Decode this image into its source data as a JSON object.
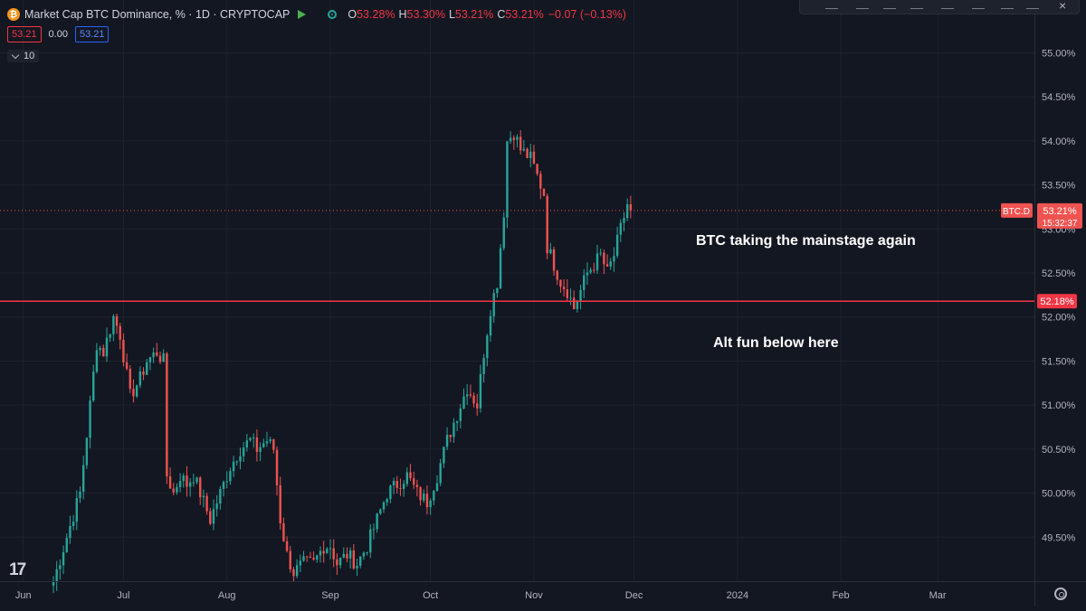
{
  "legend": {
    "coin_symbol": "₿",
    "title": "Market Cap BTC Dominance, % · 1D · CRYPTOCAP",
    "o_label": "O",
    "o_value": "53.28%",
    "h_label": "H",
    "h_value": "53.30%",
    "l_label": "L",
    "l_value": "53.21%",
    "c_label": "C",
    "c_value": "53.21%",
    "change": "−0.07 (−0.13%)"
  },
  "quote": {
    "bid": "53.21",
    "spread": "0.00",
    "ask": "53.21"
  },
  "indicator": {
    "value": "10"
  },
  "toolbar": {
    "close_symbol": "×"
  },
  "branding": {
    "logo_text": "17"
  },
  "annotations": {
    "upper": "BTC taking the mainstage again",
    "lower": "Alt fun below here"
  },
  "colors": {
    "background": "#131722",
    "up": "#26a69a",
    "down": "#ef5350",
    "level_line": "#f23645",
    "grid": "#1e222d",
    "axis_text": "#b2b5be"
  },
  "chart_data": {
    "type": "candlestick",
    "title": "Market Cap BTC Dominance, % · 1D · CRYPTOCAP",
    "symbol": "BTC.D",
    "timeframe": "1D",
    "y_unit": "%",
    "ylim": [
      49.0,
      55.6
    ],
    "y_ticks": [
      49.5,
      50.0,
      50.5,
      51.0,
      51.5,
      52.0,
      52.5,
      53.0,
      53.5,
      54.0,
      54.5,
      55.0
    ],
    "y_tick_labels": [
      "49.50%",
      "50.00%",
      "50.50%",
      "51.00%",
      "51.50%",
      "52.00%",
      "52.50%",
      "53.00%",
      "53.50%",
      "54.00%",
      "54.50%",
      "55.00%"
    ],
    "x_range": [
      "2023-05-25",
      "2024-03-30"
    ],
    "x_ticks": [
      {
        "date": "2023-06-01",
        "label": "Jun"
      },
      {
        "date": "2023-07-01",
        "label": "Jul"
      },
      {
        "date": "2023-08-01",
        "label": "Aug"
      },
      {
        "date": "2023-09-01",
        "label": "Sep"
      },
      {
        "date": "2023-10-01",
        "label": "Oct"
      },
      {
        "date": "2023-11-01",
        "label": "Nov"
      },
      {
        "date": "2023-12-01",
        "label": "Dec"
      },
      {
        "date": "2024-01-01",
        "label": "2024"
      },
      {
        "date": "2024-02-01",
        "label": "Feb"
      },
      {
        "date": "2024-03-01",
        "label": "Mar"
      }
    ],
    "last_price": {
      "value": 53.21,
      "label": "53.21%",
      "countdown": "15:32:37",
      "symbol_tag": "BTC.D"
    },
    "horizontal_line": {
      "value": 52.18,
      "label": "52.18%"
    },
    "close_anchors": [
      [
        "2023-06-10",
        49.0
      ],
      [
        "2023-06-14",
        49.5
      ],
      [
        "2023-06-18",
        50.0
      ],
      [
        "2023-06-21",
        51.0
      ],
      [
        "2023-06-23",
        51.7
      ],
      [
        "2023-06-25",
        51.6
      ],
      [
        "2023-06-28",
        52.0
      ],
      [
        "2023-06-30",
        51.8
      ],
      [
        "2023-07-03",
        51.1
      ],
      [
        "2023-07-06",
        51.3
      ],
      [
        "2023-07-08",
        51.5
      ],
      [
        "2023-07-11",
        51.6
      ],
      [
        "2023-07-13",
        51.5
      ],
      [
        "2023-07-14",
        50.2
      ],
      [
        "2023-07-16",
        50.0
      ],
      [
        "2023-07-18",
        50.2
      ],
      [
        "2023-07-20",
        50.1
      ],
      [
        "2023-07-22",
        50.2
      ],
      [
        "2023-07-25",
        49.9
      ],
      [
        "2023-07-27",
        49.7
      ],
      [
        "2023-07-30",
        50.0
      ],
      [
        "2023-08-02",
        50.3
      ],
      [
        "2023-08-05",
        50.5
      ],
      [
        "2023-08-08",
        50.6
      ],
      [
        "2023-08-10",
        50.5
      ],
      [
        "2023-08-13",
        50.6
      ],
      [
        "2023-08-15",
        50.5
      ],
      [
        "2023-08-17",
        49.7
      ],
      [
        "2023-08-19",
        49.3
      ],
      [
        "2023-08-21",
        49.1
      ],
      [
        "2023-08-24",
        49.2
      ],
      [
        "2023-08-27",
        49.2
      ],
      [
        "2023-08-30",
        49.4
      ],
      [
        "2023-09-01",
        49.4
      ],
      [
        "2023-09-03",
        49.2
      ],
      [
        "2023-09-06",
        49.3
      ],
      [
        "2023-09-09",
        49.2
      ],
      [
        "2023-09-12",
        49.4
      ],
      [
        "2023-09-15",
        49.7
      ],
      [
        "2023-09-18",
        50.0
      ],
      [
        "2023-09-21",
        50.1
      ],
      [
        "2023-09-24",
        50.2
      ],
      [
        "2023-09-27",
        50.0
      ],
      [
        "2023-09-30",
        49.9
      ],
      [
        "2023-10-03",
        50.2
      ],
      [
        "2023-10-06",
        50.6
      ],
      [
        "2023-10-09",
        50.9
      ],
      [
        "2023-10-12",
        51.2
      ],
      [
        "2023-10-15",
        51.0
      ],
      [
        "2023-10-17",
        51.6
      ],
      [
        "2023-10-19",
        52.1
      ],
      [
        "2023-10-21",
        52.4
      ],
      [
        "2023-10-23",
        53.2
      ],
      [
        "2023-10-24",
        54.0
      ],
      [
        "2023-10-26",
        54.1
      ],
      [
        "2023-10-28",
        53.9
      ],
      [
        "2023-10-31",
        53.8
      ],
      [
        "2023-11-02",
        53.6
      ],
      [
        "2023-11-04",
        53.4
      ],
      [
        "2023-11-05",
        52.8
      ],
      [
        "2023-11-07",
        52.6
      ],
      [
        "2023-11-09",
        52.4
      ],
      [
        "2023-11-11",
        52.3
      ],
      [
        "2023-11-13",
        52.1
      ],
      [
        "2023-11-15",
        52.3
      ],
      [
        "2023-11-17",
        52.5
      ],
      [
        "2023-11-19",
        52.6
      ],
      [
        "2023-11-21",
        52.7
      ],
      [
        "2023-11-23",
        52.5
      ],
      [
        "2023-11-25",
        52.7
      ],
      [
        "2023-11-27",
        53.0
      ],
      [
        "2023-11-29",
        53.28
      ],
      [
        "2023-11-30",
        53.21
      ]
    ]
  }
}
